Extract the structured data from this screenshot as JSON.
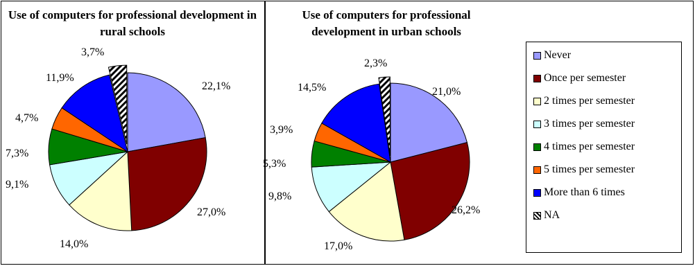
{
  "chart_data": [
    {
      "type": "pie",
      "title": "Use of computers for professional development in rural schools",
      "categories": [
        "Never",
        "Once per semester",
        "2 times per semester",
        "3 times per semester",
        "4 times per semester",
        "5 times per semester",
        "More than 6 times",
        "NA"
      ],
      "values": [
        22.1,
        27.0,
        14.0,
        9.1,
        7.3,
        4.7,
        11.9,
        3.7
      ],
      "labels": [
        "22,1%",
        "27,0%",
        "14,0%",
        "9,1%",
        "7,3%",
        "4,7%",
        "11,9%",
        "3,7%"
      ],
      "exploded_slice": "NA"
    },
    {
      "type": "pie",
      "title": "Use of computers for professional development in urban schools",
      "categories": [
        "Never",
        "Once per semester",
        "2 times per semester",
        "3 times per semester",
        "4 times per semester",
        "5 times per semester",
        "More than 6 times",
        "NA"
      ],
      "values": [
        21.0,
        26.2,
        17.0,
        9.8,
        5.3,
        3.9,
        14.5,
        2.3
      ],
      "labels": [
        "21,0%",
        "26,2%",
        "17,0%",
        "9,8%",
        "5,3%",
        "3,9%",
        "14,5%",
        "2,3%"
      ],
      "exploded_slice": "NA"
    }
  ],
  "legend": {
    "placement": "right",
    "items": [
      {
        "label": "Never",
        "color": "#9999FF"
      },
      {
        "label": "Once per semester",
        "color": "#800000"
      },
      {
        "label": "2 times per semester",
        "color": "#FFFFCC"
      },
      {
        "label": "3 times per semester",
        "color": "#CCFFFF"
      },
      {
        "label": "4 times per semester",
        "color": "#008000"
      },
      {
        "label": "5 times per semester",
        "color": "#FF6600"
      },
      {
        "label": "More than 6 times",
        "color": "#0000FF"
      },
      {
        "label": "NA",
        "color": "hatched"
      }
    ]
  }
}
